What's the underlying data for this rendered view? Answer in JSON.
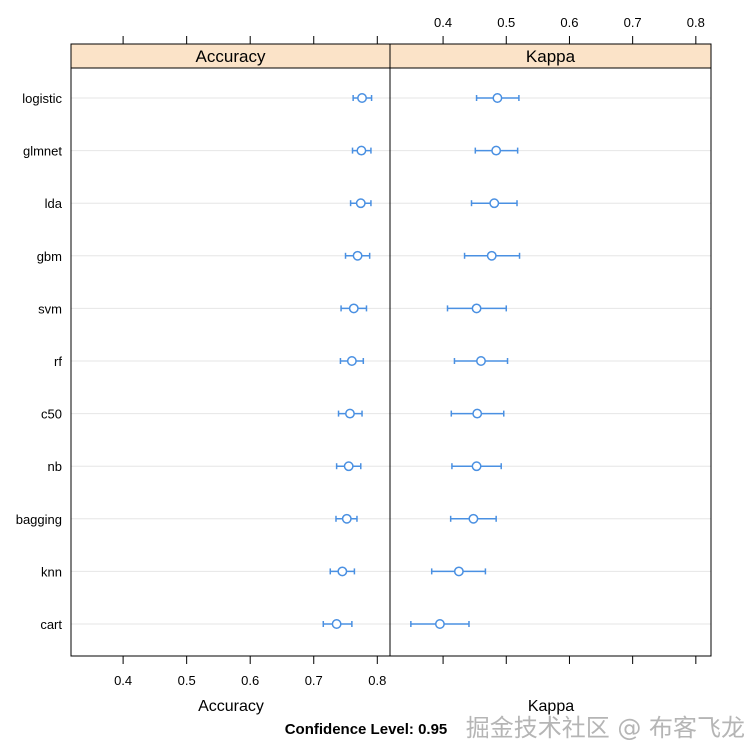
{
  "chart_data": {
    "type": "dotplot",
    "title": "",
    "caption": "Confidence Level: 0.95",
    "models": [
      "logistic",
      "glmnet",
      "lda",
      "gbm",
      "svm",
      "rf",
      "c50",
      "nb",
      "bagging",
      "knn",
      "cart"
    ],
    "panels": [
      {
        "name": "Accuracy",
        "xlabel": "Accuracy",
        "xlim": [
          0.318,
          0.82
        ],
        "ticks": [
          0.4,
          0.5,
          0.6,
          0.7,
          0.8
        ],
        "tick_labels": [
          "0.4",
          "0.5",
          "0.6",
          "0.7",
          "0.8"
        ],
        "tick_labels_side": "bottom",
        "estimate": [
          0.776,
          0.775,
          0.774,
          0.769,
          0.763,
          0.76,
          0.757,
          0.755,
          0.752,
          0.745,
          0.736
        ],
        "lower": [
          0.762,
          0.761,
          0.758,
          0.75,
          0.743,
          0.742,
          0.739,
          0.736,
          0.735,
          0.726,
          0.715
        ],
        "upper": [
          0.791,
          0.79,
          0.79,
          0.788,
          0.783,
          0.778,
          0.776,
          0.774,
          0.768,
          0.764,
          0.76
        ]
      },
      {
        "name": "Kappa",
        "xlabel": "Kappa",
        "xlim": [
          0.316,
          0.824
        ],
        "ticks": [
          0.4,
          0.5,
          0.6,
          0.7,
          0.8
        ],
        "tick_labels": [
          "0.4",
          "0.5",
          "0.6",
          "0.7",
          "0.8"
        ],
        "tick_labels_side": "top",
        "estimate": [
          0.486,
          0.484,
          0.481,
          0.477,
          0.453,
          0.46,
          0.454,
          0.453,
          0.448,
          0.425,
          0.395
        ],
        "lower": [
          0.453,
          0.451,
          0.445,
          0.434,
          0.407,
          0.418,
          0.413,
          0.414,
          0.412,
          0.382,
          0.349
        ],
        "upper": [
          0.52,
          0.518,
          0.517,
          0.521,
          0.5,
          0.502,
          0.496,
          0.492,
          0.484,
          0.467,
          0.441
        ]
      }
    ],
    "colors": {
      "point": "#4a90e2",
      "strip": "#fbe3c8",
      "grid": "#e6e6e6"
    }
  },
  "watermark": "掘金技术社区 @ 布客飞龙"
}
